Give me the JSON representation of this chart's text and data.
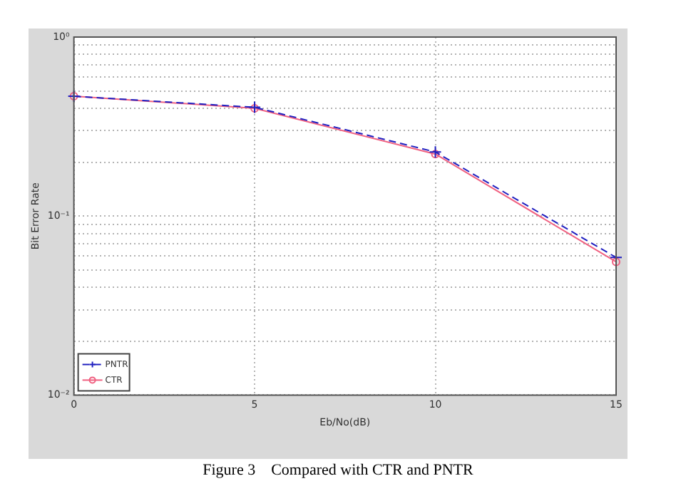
{
  "chart_data": {
    "type": "line",
    "xlabel": "Eb/No(dB)",
    "ylabel": "Bit Error Rate",
    "annotations": [
      "Figure 3    Compared with CTR and PNTR"
    ],
    "x": [
      0,
      5,
      10,
      15
    ],
    "series": [
      {
        "name": "PNTR",
        "color": "#2020c0",
        "values": [
          0.467,
          0.405,
          0.228,
          0.0587
        ],
        "marker": "cross",
        "line_style": "dashed"
      },
      {
        "name": "CTR",
        "color": "#f06080",
        "values": [
          0.467,
          0.4,
          0.222,
          0.0555
        ],
        "marker": "circle",
        "line_style": "solid"
      }
    ],
    "xlim": [
      0,
      15
    ],
    "xticks": [
      0,
      5,
      10,
      15
    ],
    "ylim": [
      0.01,
      1
    ],
    "log": "y",
    "yticks": [
      {
        "value": 0.01,
        "label": "10⁻²"
      },
      {
        "value": 0.02,
        "label": null
      },
      {
        "value": 0.03,
        "label": null
      },
      {
        "value": 0.04,
        "label": null
      },
      {
        "value": 0.05,
        "label": null
      },
      {
        "value": 0.06,
        "label": null
      },
      {
        "value": 0.07,
        "label": null
      },
      {
        "value": 0.08,
        "label": null
      },
      {
        "value": 0.09,
        "label": null
      },
      {
        "value": 0.1,
        "label": "10⁻¹"
      },
      {
        "value": 0.2,
        "label": null
      },
      {
        "value": 0.3,
        "label": null
      },
      {
        "value": 0.4,
        "label": null
      },
      {
        "value": 0.5,
        "label": null
      },
      {
        "value": 0.6,
        "label": null
      },
      {
        "value": 0.7,
        "label": null
      },
      {
        "value": 0.8,
        "label": null
      },
      {
        "value": 0.9,
        "label": null
      },
      {
        "value": 1,
        "label": "10⁰"
      }
    ],
    "grid": true,
    "legend": "bottom left"
  }
}
